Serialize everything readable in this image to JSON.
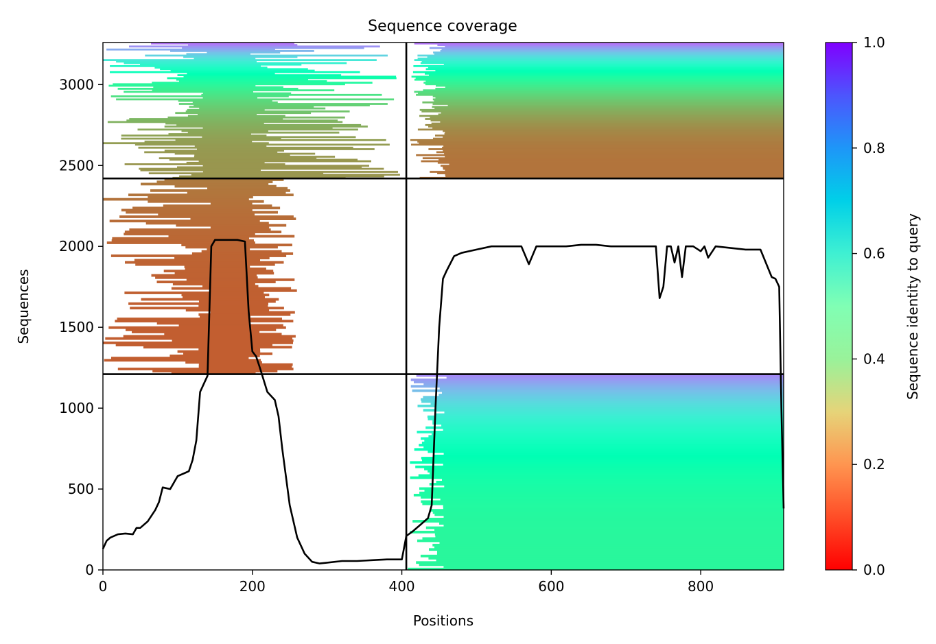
{
  "chart_data": {
    "type": "heatmap",
    "title": "Sequence coverage",
    "xlabel": "Positions",
    "ylabel": "Sequences",
    "xlim": [
      0,
      911
    ],
    "ylim": [
      0,
      3260
    ],
    "xticks": [
      0,
      200,
      400,
      600,
      800
    ],
    "yticks": [
      0,
      500,
      1000,
      1500,
      2000,
      2500,
      3000
    ],
    "grid": false,
    "colorbar": {
      "label": "Sequence identity to query",
      "range": [
        0.0,
        1.0
      ],
      "ticks": [
        "0.0",
        "0.2",
        "0.4",
        "0.6",
        "0.8",
        "1.0"
      ],
      "colormap": "rainbow_r"
    },
    "boundaries": {
      "x": [
        406
      ],
      "y": [
        1210,
        2420
      ]
    },
    "blocks": [
      {
        "name": "lower-left",
        "x": [
          0,
          406
        ],
        "y": [
          0,
          1210
        ],
        "identity": null
      },
      {
        "name": "lower-right",
        "x": [
          406,
          911
        ],
        "y": [
          0,
          1210
        ],
        "identity": [
          0.42,
          0.82
        ],
        "start_position": [
          408,
          460
        ],
        "end_position": 911
      },
      {
        "name": "middle-left",
        "x": [
          0,
          406
        ],
        "y": [
          1210,
          2420
        ],
        "identity": [
          0.12,
          0.16
        ],
        "start_position": [
          0,
          145
        ],
        "end_position": [
          195,
          260
        ]
      },
      {
        "name": "middle-right",
        "x": [
          406,
          911
        ],
        "y": [
          1210,
          2420
        ],
        "identity": null
      },
      {
        "name": "upper-left",
        "x": [
          0,
          406
        ],
        "y": [
          2420,
          3260
        ],
        "identity": [
          0.2,
          0.85
        ],
        "start_position": [
          0,
          140
        ],
        "end_position": [
          195,
          400
        ]
      },
      {
        "name": "upper-right",
        "x": [
          406,
          911
        ],
        "y": [
          2420,
          3260
        ],
        "identity": [
          0.15,
          0.85
        ],
        "start_position": [
          410,
          465
        ],
        "end_position": 911
      }
    ],
    "coverage_line": {
      "name": "coverage",
      "color": "#000000",
      "x": [
        0,
        5,
        10,
        20,
        30,
        40,
        45,
        50,
        60,
        70,
        75,
        80,
        90,
        100,
        110,
        115,
        120,
        125,
        130,
        135,
        140,
        145,
        150,
        160,
        170,
        180,
        190,
        195,
        200,
        205,
        210,
        220,
        230,
        235,
        240,
        250,
        260,
        270,
        280,
        290,
        300,
        320,
        340,
        360,
        380,
        400,
        406,
        415,
        425,
        435,
        440,
        445,
        450,
        455,
        460,
        470,
        480,
        500,
        520,
        540,
        560,
        570,
        580,
        600,
        620,
        640,
        660,
        680,
        700,
        720,
        740,
        745,
        750,
        755,
        760,
        765,
        770,
        775,
        780,
        785,
        790,
        800,
        805,
        810,
        820,
        840,
        860,
        880,
        895,
        900,
        905,
        908,
        911
      ],
      "y": [
        130,
        180,
        200,
        220,
        225,
        220,
        260,
        260,
        300,
        370,
        420,
        510,
        500,
        580,
        600,
        610,
        680,
        800,
        1100,
        1150,
        1200,
        2000,
        2040,
        2040,
        2040,
        2040,
        2030,
        1600,
        1350,
        1320,
        1250,
        1100,
        1050,
        950,
        750,
        400,
        200,
        100,
        50,
        40,
        45,
        55,
        55,
        60,
        65,
        65,
        210,
        240,
        280,
        320,
        400,
        1000,
        1500,
        1800,
        1850,
        1940,
        1960,
        1980,
        2000,
        2000,
        2000,
        1890,
        2000,
        2000,
        2000,
        2010,
        2010,
        2000,
        2000,
        2000,
        2000,
        1680,
        1750,
        2000,
        2000,
        1900,
        2000,
        1810,
        2000,
        2000,
        2000,
        1970,
        2000,
        1930,
        2000,
        1990,
        1980,
        1980,
        1810,
        1800,
        1750,
        1000,
        380
      ]
    }
  }
}
